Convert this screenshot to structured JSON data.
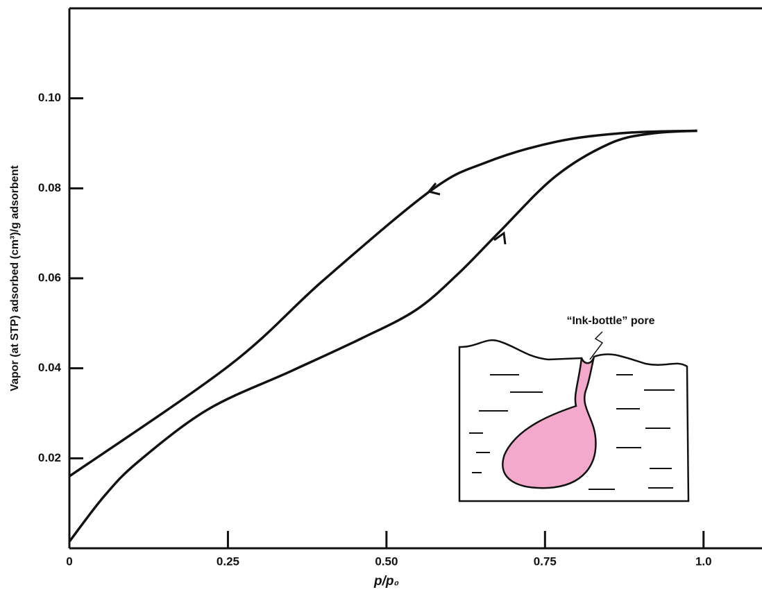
{
  "chart_data": {
    "type": "line",
    "x_label": "p/p₀",
    "y_label": "Vapor (at STP) adsorbed (cm³)/g adsorbent",
    "annotation": "“Ink-bottle” pore",
    "xlim": [
      0,
      1.09
    ],
    "ylim": [
      0,
      0.12
    ],
    "xticks": [
      0,
      0.25,
      {
        "value": 0.5,
        "label": "0.50"
      },
      0.75,
      {
        "value": 1,
        "label": "1.0"
      }
    ],
    "yticks": [
      {
        "value": 0.02,
        "label": "0.02"
      },
      {
        "value": 0.04,
        "label": "0.04"
      },
      {
        "value": 0.06,
        "label": "0.06"
      },
      {
        "value": 0.08,
        "label": "0.08"
      },
      {
        "value": 0.1,
        "label": "0.10"
      }
    ],
    "series": [
      {
        "color": "#111111",
        "x": [
          0,
          0.252,
          0.4,
          0.57,
          0.656,
          0.766,
          0.875,
          0.99
        ],
        "values": [
          0.016,
          0.0406,
          0.0595,
          0.0795,
          0.0857,
          0.0903,
          0.0923,
          0.0928
        ]
      },
      {
        "color": "#111111",
        "x": [
          0,
          0.055,
          0.109,
          0.219,
          0.35,
          0.46,
          0.547,
          0.613,
          0.678,
          0.766,
          0.853,
          0.919,
          0.99
        ],
        "values": [
          0.0015,
          0.0116,
          0.0193,
          0.0309,
          0.0394,
          0.0466,
          0.053,
          0.061,
          0.0703,
          0.0826,
          0.09,
          0.0922,
          0.0928
        ]
      }
    ]
  }
}
